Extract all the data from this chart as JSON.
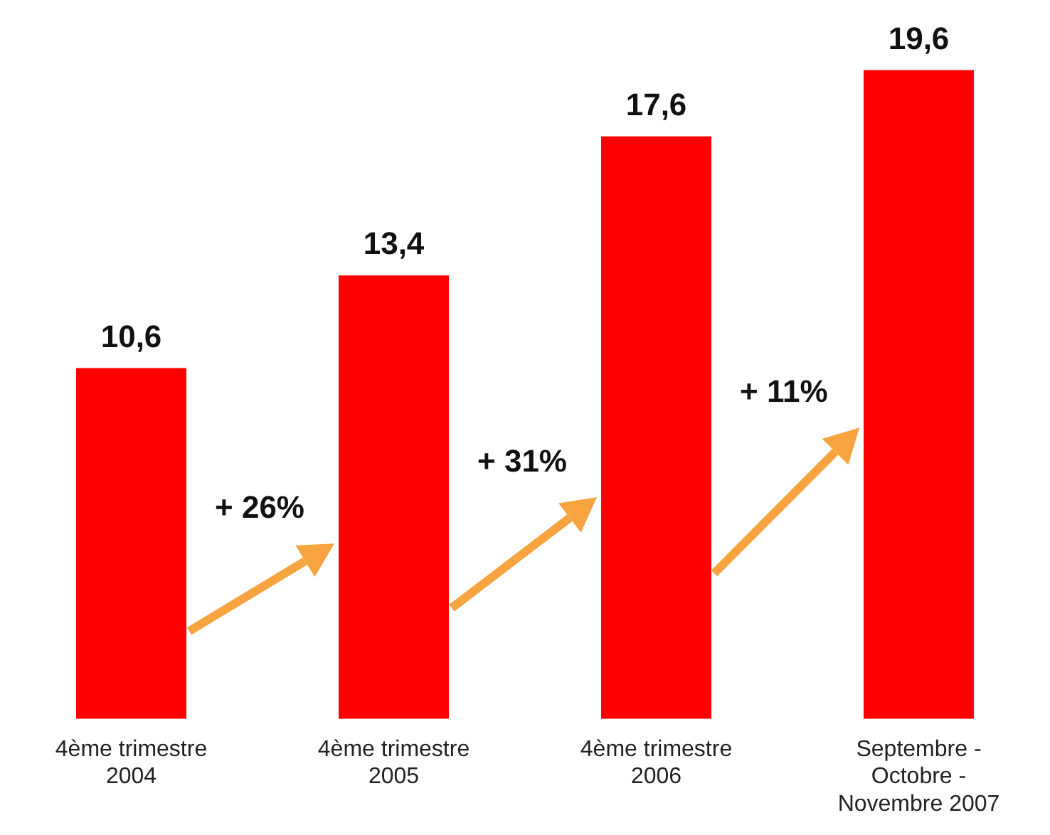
{
  "chart_data": {
    "type": "bar",
    "categories": [
      "4ème trimestre 2004",
      "4ème trimestre 2005",
      "4ème trimestre 2006",
      "Septembre - Octobre - Novembre 2007"
    ],
    "values": [
      10.6,
      13.4,
      17.6,
      19.6
    ],
    "color": "#ff0000",
    "value_labels": [
      "10,6",
      "13,4",
      "17,6",
      "19,6"
    ],
    "annotations": [
      "+ 26%",
      "+ 31%",
      "+ 11%"
    ],
    "grid": false,
    "legend": false
  }
}
